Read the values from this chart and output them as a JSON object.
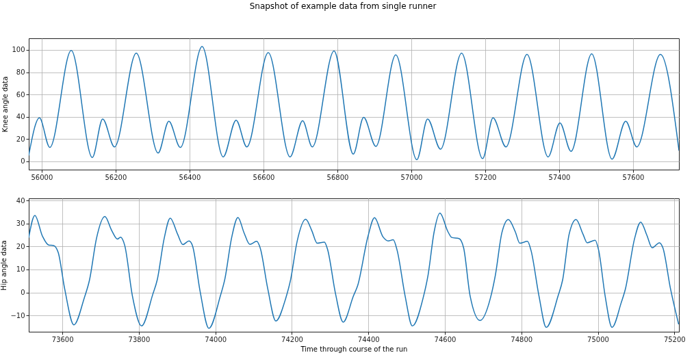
{
  "chart_data": [
    {
      "type": "line",
      "title": "Snapshot of example data from single runner",
      "ylabel": "Knee angle data",
      "xlim": [
        55965,
        57724
      ],
      "ylim": [
        -7.4,
        110.4
      ],
      "xticks": [
        56000,
        56200,
        56400,
        56600,
        56800,
        57000,
        57200,
        57400,
        57600
      ],
      "yticks": [
        0,
        20,
        40,
        60,
        80,
        100
      ],
      "grid": true,
      "x": [
        55965,
        55994,
        56022,
        56080,
        56137,
        56165,
        56197,
        56256,
        56315,
        56344,
        56375,
        56434,
        56491,
        56526,
        56555,
        56613,
        56672,
        56706,
        56732,
        56791,
        56843,
        56871,
        56904,
        56958,
        57015,
        57044,
        57079,
        57136,
        57193,
        57221,
        57256,
        57313,
        57370,
        57402,
        57432,
        57488,
        57543,
        57580,
        57610,
        57674,
        57724
      ],
      "series": [
        {
          "color": "#1f77b4",
          "values": [
            5.5,
            39,
            12.5,
            99.5,
            3.5,
            38,
            13,
            97,
            7.5,
            36,
            12.5,
            103,
            4,
            37,
            13,
            97.5,
            4,
            36.5,
            13,
            99,
            6.5,
            39.5,
            13.5,
            95.5,
            1.5,
            38,
            11,
            97,
            2.5,
            39,
            13,
            96,
            4,
            34.5,
            9,
            96.5,
            2,
            36,
            13,
            96,
            10
          ]
        }
      ]
    },
    {
      "type": "line",
      "xlabel": "Time through course of the run",
      "ylabel": "Hip angle data",
      "xlim": [
        73512,
        75212
      ],
      "ylim": [
        -17.1,
        40.9
      ],
      "xticks": [
        73600,
        73800,
        74000,
        74200,
        74400,
        74600,
        74800,
        75000,
        75200
      ],
      "yticks": [
        -10,
        0,
        10,
        20,
        30,
        40
      ],
      "grid": true,
      "x": [
        73512,
        73528,
        73548,
        73564,
        73577,
        73589,
        73606,
        73630,
        73657,
        73671,
        73689,
        73711,
        73729,
        73744,
        73752,
        73763,
        73783,
        73807,
        73836,
        73848,
        73866,
        73882,
        73901,
        73915,
        73931,
        73940,
        73960,
        73983,
        74013,
        74025,
        74042,
        74059,
        74075,
        74090,
        74108,
        74117,
        74137,
        74158,
        74184,
        74196,
        74214,
        74236,
        74252,
        74266,
        74285,
        74293,
        74314,
        74334,
        74361,
        74372,
        74399,
        74416,
        74438,
        74452,
        74465,
        74475,
        74496,
        74515,
        74543,
        74556,
        74572,
        74587,
        74608,
        74618,
        74637,
        74649,
        74666,
        74692,
        74719,
        74732,
        74749,
        74766,
        74784,
        74796,
        74816,
        74825,
        74846,
        74865,
        74896,
        74908,
        74925,
        74943,
        74961,
        74972,
        74993,
        75002,
        75019,
        75037,
        75061,
        75072,
        75096,
        75112,
        75128,
        75142,
        75161,
        75170,
        75190,
        75211
      ],
      "series": [
        {
          "color": "#1f77b4",
          "values": [
            23.9,
            33.5,
            24.4,
            20.6,
            20.4,
            17.4,
            1.5,
            -14.1,
            -2.5,
            5.5,
            23.4,
            33,
            26.9,
            23.2,
            24,
            20.4,
            -1.5,
            -14.6,
            -1,
            5.5,
            23.4,
            32.3,
            25.4,
            20.8,
            22.4,
            20.4,
            0.5,
            -15.6,
            -1.5,
            6,
            23.4,
            32.6,
            25.9,
            20.9,
            22.2,
            19.4,
            1.5,
            -12.4,
            -2.5,
            5,
            22.4,
            31.8,
            26.9,
            21.4,
            21.9,
            18.9,
            -0.5,
            -12.9,
            -1.5,
            3,
            24.4,
            32.5,
            24.2,
            22.4,
            22.9,
            18.4,
            -1.5,
            -14.6,
            -2.5,
            7.5,
            26.4,
            34.5,
            26.4,
            23.9,
            23.4,
            19.4,
            -1.5,
            -12.2,
            -2.5,
            7.5,
            25.9,
            31.7,
            26.4,
            21.4,
            22.2,
            18.4,
            -1.5,
            -15.2,
            -1.5,
            5.5,
            25.4,
            31.7,
            25.4,
            21.6,
            22.7,
            18.4,
            -1.5,
            -15.2,
            -4.5,
            1.5,
            23.4,
            30.6,
            24.9,
            19.4,
            21.6,
            19.4,
            1.5,
            -13.7
          ]
        }
      ]
    }
  ]
}
